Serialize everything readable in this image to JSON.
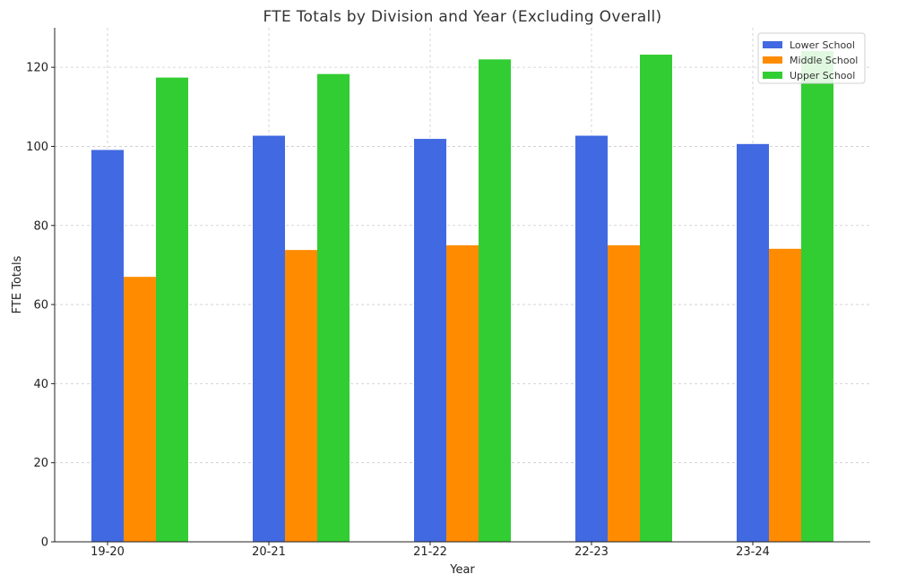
{
  "chart_data": {
    "type": "bar",
    "title": "FTE Totals by Division and Year (Excluding Overall)",
    "xlabel": "Year",
    "ylabel": "FTE Totals",
    "categories": [
      "19-20",
      "20-21",
      "21-22",
      "22-23",
      "23-24"
    ],
    "series": [
      {
        "name": "Lower School",
        "color": "#4169e1",
        "values": [
          99.1,
          102.7,
          101.9,
          102.7,
          100.6
        ]
      },
      {
        "name": "Middle School",
        "color": "#ff8c00",
        "values": [
          67.0,
          73.8,
          75.0,
          75.0,
          74.1
        ]
      },
      {
        "name": "Upper School",
        "color": "#32cd32",
        "values": [
          117.4,
          118.3,
          122.0,
          123.2,
          124.1
        ]
      }
    ],
    "ylim": [
      0,
      130
    ],
    "yticks": [
      0,
      20,
      40,
      60,
      80,
      100,
      120
    ],
    "grid": true,
    "legend_position": "top-right"
  }
}
